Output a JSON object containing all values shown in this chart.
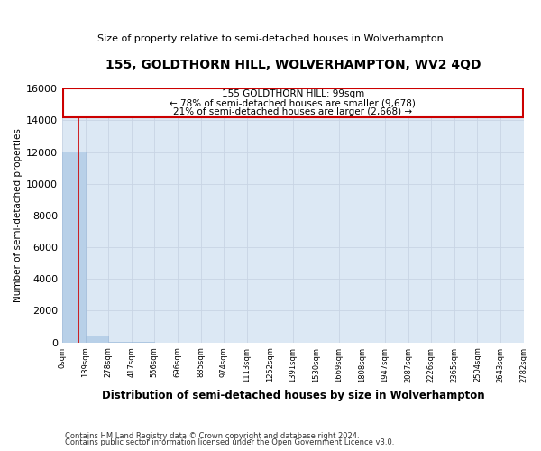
{
  "title1": "155, GOLDTHORN HILL, WOLVERHAMPTON, WV2 4QD",
  "title2": "Size of property relative to semi-detached houses in Wolverhampton",
  "xlabel": "Distribution of semi-detached houses by size in Wolverhampton",
  "ylabel": "Number of semi-detached properties",
  "footnote1": "Contains HM Land Registry data © Crown copyright and database right 2024.",
  "footnote2": "Contains public sector information licensed under the Open Government Licence v3.0.",
  "annotation_line1": "155 GOLDTHORN HILL: 99sqm",
  "annotation_line2": "← 78% of semi-detached houses are smaller (9,678)",
  "annotation_line3": "21% of semi-detached houses are larger (2,668) →",
  "subject_size": 99,
  "bar_color": "#b8d0e8",
  "bar_edge_color": "#9ab8d8",
  "vline_color": "#cc0000",
  "annotation_box_edgecolor": "#cc0000",
  "grid_color": "#c8d4e4",
  "bg_color": "#dce8f4",
  "ylim": [
    0,
    16000
  ],
  "yticks": [
    0,
    2000,
    4000,
    6000,
    8000,
    10000,
    12000,
    14000,
    16000
  ],
  "bin_edges": [
    0,
    139,
    278,
    417,
    556,
    696,
    835,
    974,
    1113,
    1252,
    1391,
    1530,
    1669,
    1808,
    1947,
    2087,
    2226,
    2365,
    2504,
    2643,
    2782
  ],
  "bin_labels": [
    "0sqm",
    "139sqm",
    "278sqm",
    "417sqm",
    "556sqm",
    "696sqm",
    "835sqm",
    "974sqm",
    "1113sqm",
    "1252sqm",
    "1391sqm",
    "1530sqm",
    "1669sqm",
    "1808sqm",
    "1947sqm",
    "2087sqm",
    "2226sqm",
    "2365sqm",
    "2504sqm",
    "2643sqm",
    "2782sqm"
  ],
  "bar_heights": [
    12050,
    420,
    60,
    20,
    10,
    5,
    3,
    2,
    1,
    1,
    1,
    1,
    1,
    0,
    0,
    0,
    0,
    0,
    0,
    0
  ]
}
